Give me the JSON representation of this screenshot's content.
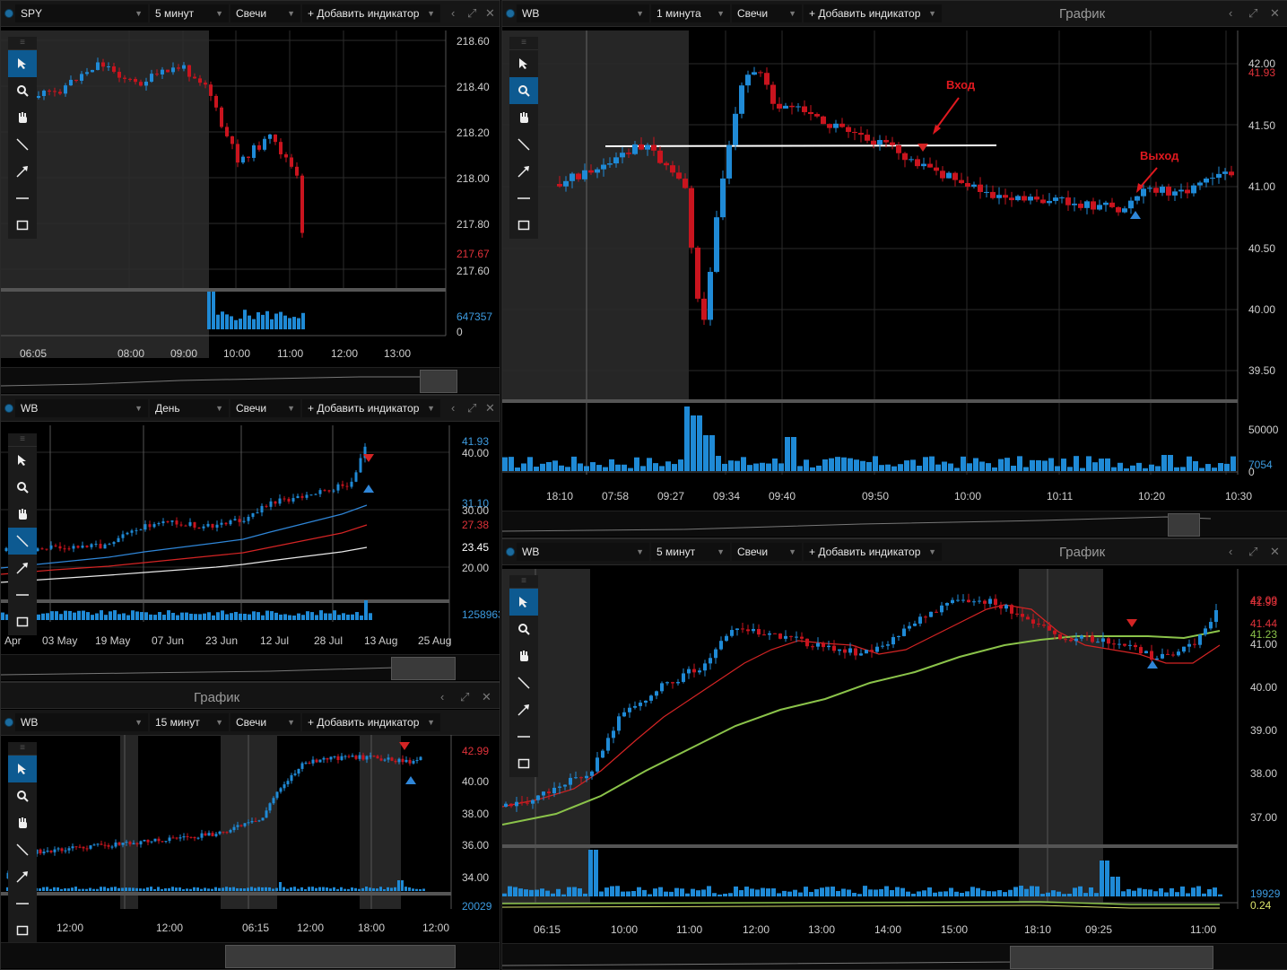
{
  "common": {
    "add_indicator": "+ Добавить индикатор",
    "window_title": "График",
    "controls": {
      "back": "‹",
      "maximize": "⤢",
      "close": "✕"
    }
  },
  "colors": {
    "up": "#1f8ad6",
    "down": "#c9141e",
    "accent": "#0d5a91",
    "vol": "#1f8ad6"
  },
  "tools": [
    "pointer-icon",
    "zoom-icon",
    "hand-icon",
    "line-icon",
    "arrow-icon",
    "hline-icon",
    "rect-icon"
  ],
  "panels": [
    {
      "id": "p1",
      "symbol": "SPY",
      "interval": "5 минут",
      "type": "Свечи",
      "title": "",
      "price_ticks": [
        "218.60",
        "218.40",
        "218.20",
        "218.00",
        "217.80",
        "217.67",
        "217.60"
      ],
      "volume_ticks": [
        "647357",
        "0"
      ],
      "time_ticks": [
        "06:05",
        "08:00",
        "09:00",
        "10:00",
        "11:00",
        "12:00",
        "13:00"
      ],
      "last_price": "217.67"
    },
    {
      "id": "p2",
      "symbol": "WB",
      "interval": "1 минута",
      "type": "Свечи",
      "title": "График",
      "price_ticks": [
        "42.00",
        "41.93",
        "41.50",
        "41.00",
        "40.50",
        "40.00",
        "39.50"
      ],
      "volume_ticks": [
        "50000",
        "7054",
        "0"
      ],
      "time_ticks": [
        "18:10",
        "07:58",
        "09:27",
        "09:34",
        "09:40",
        "09:50",
        "10:00",
        "10:11",
        "10:20",
        "10:30"
      ],
      "annotations": {
        "entry": "Вход",
        "exit": "Выход"
      },
      "last_price": "41.93"
    },
    {
      "id": "p3",
      "symbol": "WB",
      "interval": "День",
      "type": "Свечи",
      "title": "",
      "price_ticks": [
        "41.93",
        "40.00",
        "31.10",
        "30.00",
        "27.38",
        "23.45",
        "20.00"
      ],
      "volume_ticks": [
        "1258963"
      ],
      "time_ticks": [
        "Apr",
        "03 May",
        "19 May",
        "07 Jun",
        "23 Jun",
        "12 Jul",
        "28 Jul",
        "13 Aug",
        "25 Aug"
      ]
    },
    {
      "id": "p4",
      "symbol": "WB",
      "interval": "15 минут",
      "type": "Свечи",
      "title": "График",
      "price_ticks": [
        "42.99",
        "40.00",
        "38.00",
        "36.00",
        "34.00",
        "20029"
      ],
      "time_ticks": [
        "12:00",
        "12:00",
        "06:15",
        "12:00",
        "18:00",
        "12:00"
      ]
    },
    {
      "id": "p5",
      "symbol": "WB",
      "interval": "5 минут",
      "type": "Свечи",
      "title": "График",
      "price_ticks": [
        "42.00",
        "41.93",
        "41.44",
        "41.23",
        "41.00",
        "40.00",
        "39.00",
        "38.00",
        "37.00"
      ],
      "volume_ticks": [
        "19929",
        "0.24"
      ],
      "time_ticks": [
        "06:15",
        "10:00",
        "11:00",
        "12:00",
        "13:00",
        "14:00",
        "15:00",
        "18:10",
        "09:25",
        "11:00"
      ]
    }
  ]
}
